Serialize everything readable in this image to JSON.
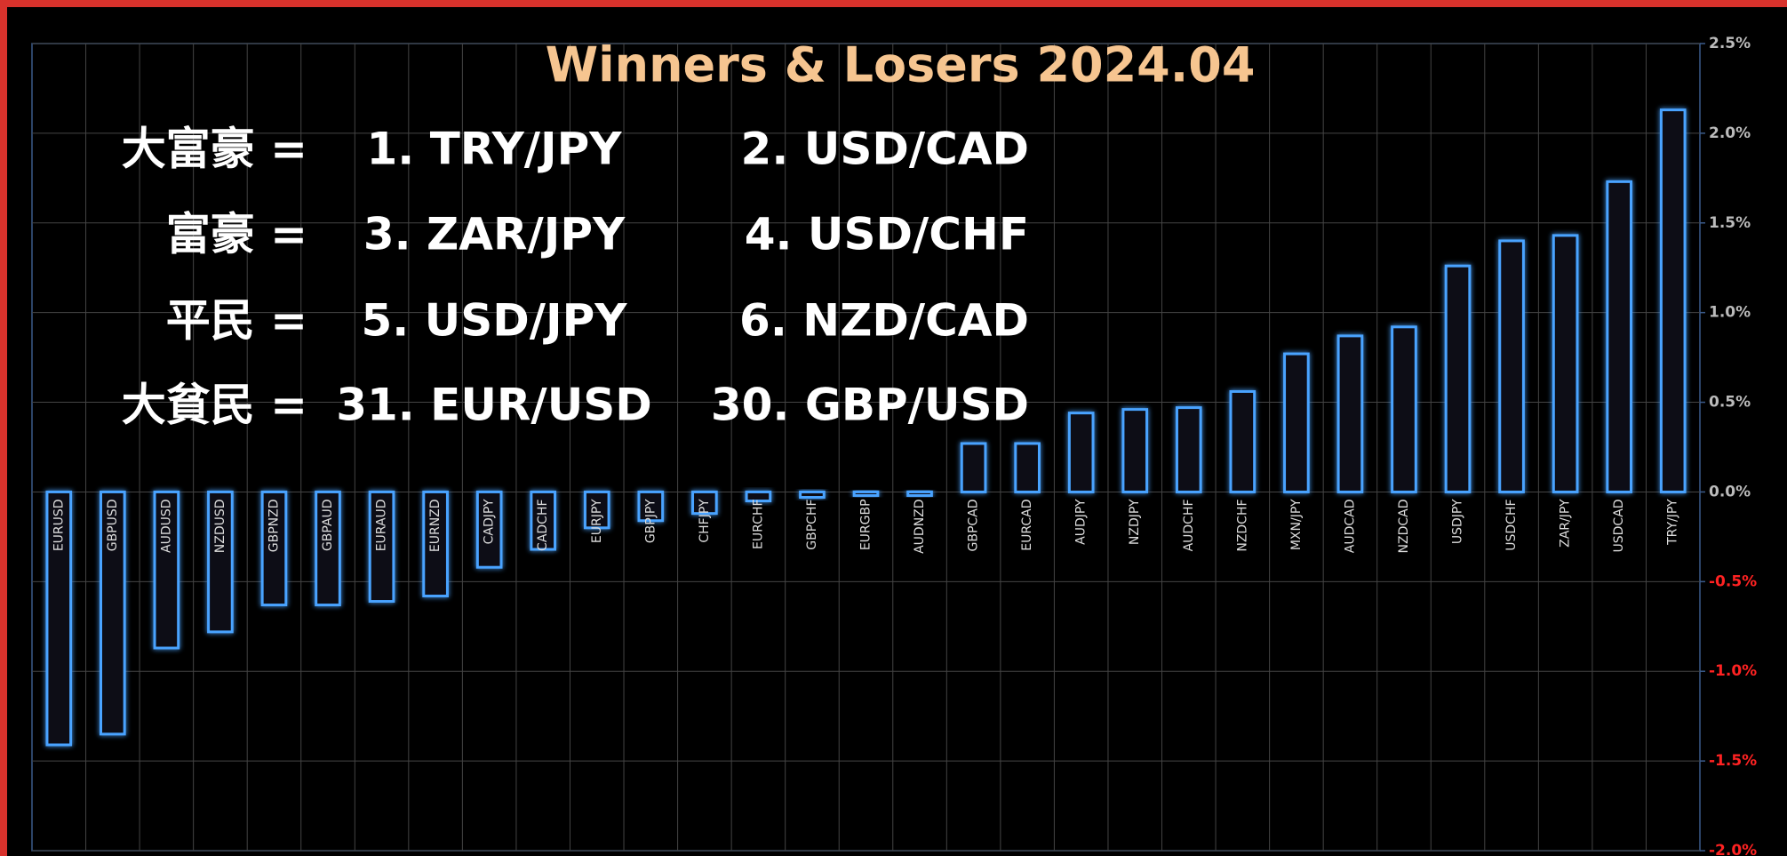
{
  "chart_data": {
    "type": "bar",
    "title": "Winners & Losers  2024.04",
    "annotations": [
      [
        "大富豪 =",
        "1. TRY/JPY",
        "2. USD/CAD"
      ],
      [
        "富豪 =",
        "3. ZAR/JPY",
        "4. USD/CHF"
      ],
      [
        "平民 =",
        "5. USD/JPY",
        "6. NZD/CAD"
      ],
      [
        "大貧民 =",
        "31. EUR/USD",
        "30. GBP/USD"
      ]
    ],
    "categories": [
      "EURUSD",
      "GBPUSD",
      "AUDUSD",
      "NZDUSD",
      "GBPNZD",
      "GBPAUD",
      "EURAUD",
      "EURNZD",
      "CADJPY",
      "CADCHF",
      "EURJPY",
      "GBPJPY",
      "CHFJPY",
      "EURCHF",
      "GBPCHF",
      "EURGBP",
      "AUDNZD",
      "GBPCAD",
      "EURCAD",
      "AUDJPY",
      "NZDJPY",
      "AUDCHF",
      "NZDCHF",
      "MXN/JPY",
      "AUDCAD",
      "NZDCAD",
      "USDJPY",
      "USDCHF",
      "ZAR/JPY",
      "USDCAD",
      "TRY/JPY"
    ],
    "values": [
      -1.41,
      -1.35,
      -0.87,
      -0.78,
      -0.63,
      -0.63,
      -0.61,
      -0.58,
      -0.42,
      -0.32,
      -0.2,
      -0.16,
      -0.12,
      -0.05,
      -0.03,
      -0.02,
      -0.02,
      0.27,
      0.27,
      0.44,
      0.46,
      0.47,
      0.56,
      0.77,
      0.87,
      0.92,
      1.26,
      1.4,
      1.43,
      1.73,
      2.13
    ],
    "color": "#4aa3ff",
    "ylim": [
      -2.0,
      2.5
    ],
    "yticks": [
      {
        "value": 2.5,
        "label": "2.5%"
      },
      {
        "value": 2.0,
        "label": "2.0%"
      },
      {
        "value": 1.5,
        "label": "1.5%"
      },
      {
        "value": 1.0,
        "label": "1.0%"
      },
      {
        "value": 0.5,
        "label": "0.5%"
      },
      {
        "value": 0.0,
        "label": "0.0%"
      },
      {
        "value": -0.5,
        "label": "-0.5%"
      },
      {
        "value": -1.0,
        "label": "-1.0%"
      },
      {
        "value": -1.5,
        "label": "-1.5%"
      },
      {
        "value": -2.0,
        "label": "-2.0%"
      }
    ],
    "negative_tick_color": "#ff2222",
    "grid": true
  }
}
